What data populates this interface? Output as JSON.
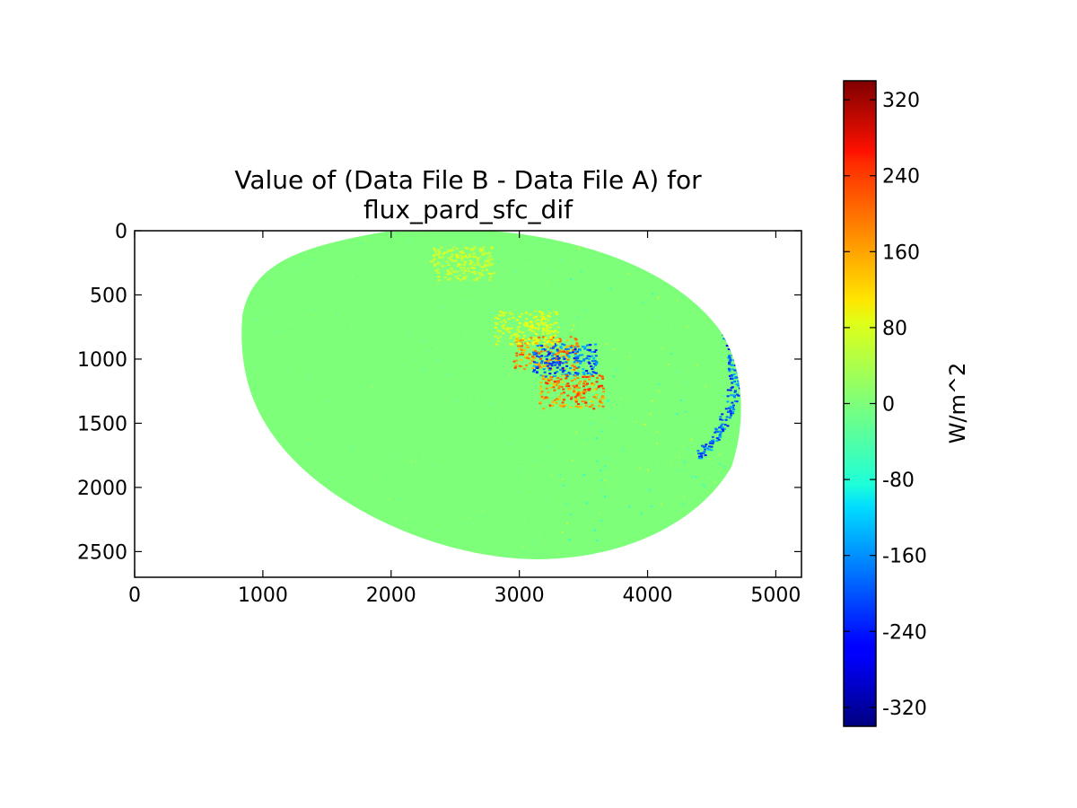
{
  "chart_data": {
    "type": "heatmap",
    "title": "Value of (Data File B - Data File A) for",
    "subtitle": "flux_pard_sfc_dif",
    "xlabel": "",
    "ylabel": "",
    "xlim": [
      0,
      5200
    ],
    "ylim": [
      2700,
      0
    ],
    "x_ticks": [
      0,
      1000,
      2000,
      3000,
      4000,
      5000
    ],
    "y_ticks": [
      0,
      500,
      1000,
      1500,
      2000,
      2500
    ],
    "colorbar": {
      "label": "W/m^2",
      "range": [
        -340,
        340
      ],
      "ticks": [
        320,
        240,
        160,
        80,
        0,
        -80,
        -160,
        -240,
        -320
      ],
      "colormap": "jet"
    },
    "grid": false,
    "background_value": 0,
    "features": [
      {
        "kind": "negative-edge",
        "x": 4600,
        "y": 900,
        "value": -250
      },
      {
        "kind": "positive-cluster",
        "x": 3200,
        "y": 950,
        "value": 220
      },
      {
        "kind": "negative-cluster",
        "x": 3350,
        "y": 1000,
        "value": -250
      },
      {
        "kind": "positive-cluster",
        "x": 3400,
        "y": 1250,
        "value": 230
      },
      {
        "kind": "moderate-positive",
        "x": 3050,
        "y": 750,
        "value": 90
      },
      {
        "kind": "moderate-positive",
        "x": 2550,
        "y": 250,
        "value": 70
      }
    ]
  }
}
